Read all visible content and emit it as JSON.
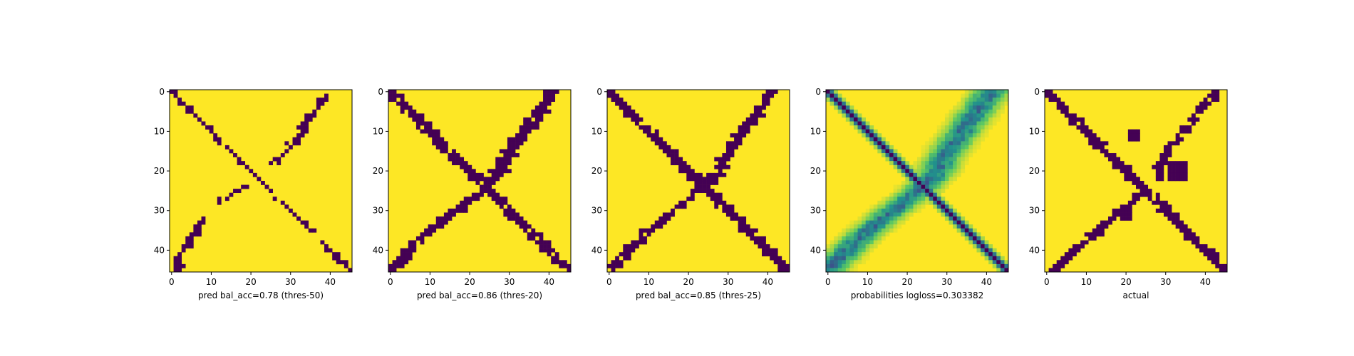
{
  "figure": {
    "panel_count": 5
  },
  "colors": {
    "background": "#440154",
    "foreground": "#fde725",
    "viridis": [
      "#440154",
      "#3b528b",
      "#21918c",
      "#5ec962",
      "#fde725"
    ],
    "axis": "#000000"
  },
  "chart_data": [
    {
      "type": "heatmap",
      "title": "",
      "xlabel": "pred bal_acc=0.78 (thres-50)",
      "ylabel": "",
      "xlim": [
        -0.5,
        45.5
      ],
      "ylim": [
        45.5,
        -0.5
      ],
      "xticks": [
        0,
        10,
        20,
        30,
        40
      ],
      "yticks": [
        0,
        10,
        20,
        30,
        40
      ],
      "xtick_labels": [
        "0",
        "10",
        "20",
        "30",
        "40"
      ],
      "ytick_labels": [
        "0",
        "10",
        "20",
        "30",
        "40"
      ],
      "grid_size": 46,
      "value_range": [
        0,
        1
      ],
      "diag_a": [
        0,
        45,
        0.5
      ],
      "diag_b": [
        [
          1,
          39
        ],
        [
          3,
          38
        ],
        [
          7,
          34
        ],
        [
          10,
          33
        ],
        [
          14,
          30
        ],
        [
          17,
          27
        ],
        [
          20,
          25
        ],
        [
          26,
          15
        ],
        [
          28,
          12
        ],
        [
          32,
          8
        ],
        [
          35,
          6
        ],
        [
          38,
          4
        ],
        [
          42,
          2
        ],
        [
          45,
          1
        ]
      ],
      "band_b": 0.9,
      "gaps_b": [
        [
          19,
          23
        ],
        [
          29,
          31
        ]
      ],
      "noise": 0.06
    },
    {
      "type": "heatmap",
      "title": "",
      "xlabel": "pred bal_acc=0.86 (thres-20)",
      "ylabel": "",
      "xlim": [
        -0.5,
        45.5
      ],
      "ylim": [
        45.5,
        -0.5
      ],
      "xticks": [
        0,
        10,
        20,
        30,
        40
      ],
      "yticks": [
        0,
        10,
        20,
        30,
        40
      ],
      "xtick_labels": [
        "0",
        "10",
        "20",
        "30",
        "40"
      ],
      "ytick_labels": [
        "0",
        "10",
        "20",
        "30",
        "40"
      ],
      "grid_size": 46,
      "value_range": [
        0,
        1
      ],
      "diag_a": [
        0,
        45,
        1.4
      ],
      "diag_b": [
        [
          0,
          41
        ],
        [
          3,
          39
        ],
        [
          7,
          36
        ],
        [
          10,
          34
        ],
        [
          14,
          31
        ],
        [
          17,
          29
        ],
        [
          21,
          27
        ],
        [
          25,
          23
        ],
        [
          28,
          19
        ],
        [
          32,
          14
        ],
        [
          36,
          9
        ],
        [
          39,
          6
        ],
        [
          42,
          3
        ],
        [
          45,
          0
        ]
      ],
      "band_b": 1.5,
      "gaps_b": [],
      "noise": 0.08
    },
    {
      "type": "heatmap",
      "title": "",
      "xlabel": "pred bal_acc=0.85 (thres-25)",
      "ylabel": "",
      "xlim": [
        -0.5,
        45.5
      ],
      "ylim": [
        45.5,
        -0.5
      ],
      "xticks": [
        0,
        10,
        20,
        30,
        40
      ],
      "yticks": [
        0,
        10,
        20,
        30,
        40
      ],
      "xtick_labels": [
        "0",
        "10",
        "20",
        "30",
        "40"
      ],
      "ytick_labels": [
        "0",
        "10",
        "20",
        "30",
        "40"
      ],
      "grid_size": 46,
      "value_range": [
        0,
        1
      ],
      "diag_a": [
        0,
        45,
        1.2
      ],
      "diag_b": [
        [
          0,
          41
        ],
        [
          3,
          39
        ],
        [
          7,
          36
        ],
        [
          10,
          34
        ],
        [
          14,
          31
        ],
        [
          17,
          29
        ],
        [
          21,
          27
        ],
        [
          25,
          23
        ],
        [
          28,
          19
        ],
        [
          32,
          14
        ],
        [
          36,
          9
        ],
        [
          39,
          6
        ],
        [
          42,
          3
        ],
        [
          45,
          0
        ]
      ],
      "band_b": 1.3,
      "gaps_b": [],
      "noise": 0.06
    },
    {
      "type": "heatmap",
      "title": "",
      "xlabel": "probabilities logloss=0.303382",
      "ylabel": "",
      "xlim": [
        -0.5,
        45.5
      ],
      "ylim": [
        45.5,
        -0.5
      ],
      "xticks": [
        0,
        10,
        20,
        30,
        40
      ],
      "yticks": [
        0,
        10,
        20,
        30,
        40
      ],
      "xtick_labels": [
        "0",
        "10",
        "20",
        "30",
        "40"
      ],
      "ytick_labels": [
        "0",
        "10",
        "20",
        "30",
        "40"
      ],
      "grid_size": 46,
      "value_range": [
        0,
        1
      ],
      "continuous": true,
      "diag_a": [
        0,
        45,
        1.0
      ],
      "diag_b": [
        [
          0,
          41
        ],
        [
          3,
          39
        ],
        [
          7,
          36
        ],
        [
          10,
          34
        ],
        [
          14,
          31
        ],
        [
          17,
          29
        ],
        [
          21,
          27
        ],
        [
          25,
          23
        ],
        [
          28,
          19
        ],
        [
          32,
          14
        ],
        [
          36,
          9
        ],
        [
          39,
          6
        ],
        [
          42,
          3
        ],
        [
          45,
          0
        ]
      ],
      "band_b": 2.8,
      "gaps_b": [],
      "noise": 0.1
    },
    {
      "type": "heatmap",
      "title": "",
      "xlabel": "actual",
      "ylabel": "",
      "xlim": [
        -0.5,
        45.5
      ],
      "ylim": [
        45.5,
        -0.5
      ],
      "xticks": [
        0,
        10,
        20,
        30,
        40
      ],
      "yticks": [
        0,
        10,
        20,
        30,
        40
      ],
      "xtick_labels": [
        "0",
        "10",
        "20",
        "30",
        "40"
      ],
      "ytick_labels": [
        "0",
        "10",
        "20",
        "30",
        "40"
      ],
      "grid_size": 46,
      "value_range": [
        0,
        1
      ],
      "diag_a": [
        0,
        45,
        1.1
      ],
      "diag_b": [
        [
          0,
          43
        ],
        [
          3,
          40
        ],
        [
          7,
          37
        ],
        [
          10,
          35
        ],
        [
          14,
          31
        ],
        [
          18,
          29
        ],
        [
          22,
          28
        ],
        [
          26,
          24
        ],
        [
          29,
          20
        ],
        [
          33,
          15
        ],
        [
          37,
          11
        ],
        [
          40,
          7
        ],
        [
          43,
          4
        ],
        [
          45,
          2
        ]
      ],
      "band_b": 1.1,
      "gaps_b": [
        [
          23,
          25
        ]
      ],
      "blobs": [
        [
          11,
          22,
          1
        ],
        [
          20,
          33,
          2
        ],
        [
          31,
          20,
          1
        ]
      ],
      "noise": 0.05
    }
  ]
}
